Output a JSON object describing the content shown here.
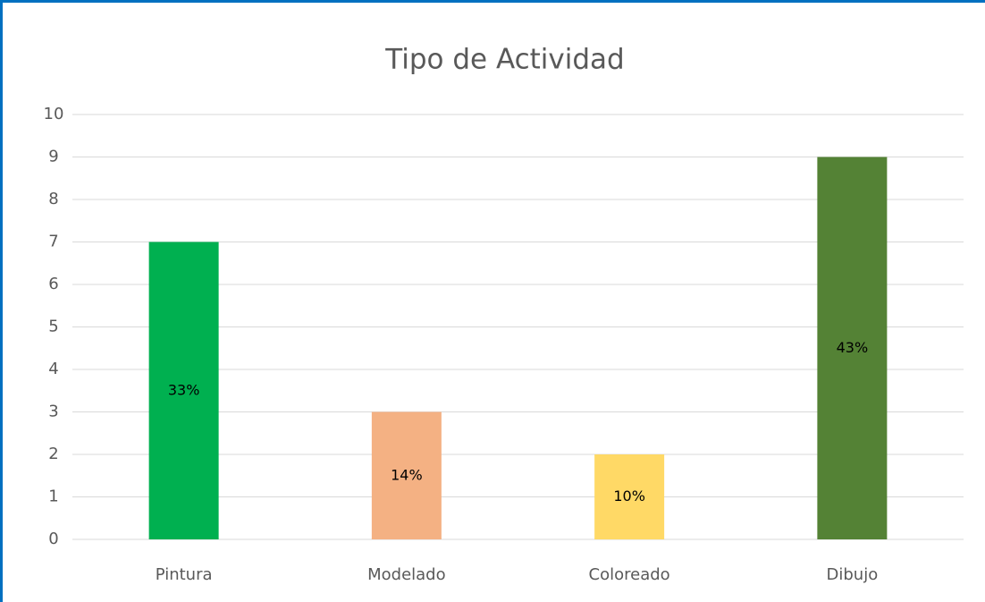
{
  "chart_data": {
    "type": "bar",
    "title": "Tipo de Actividad",
    "categories": [
      "Pintura",
      "Modelado",
      "Coloreado",
      "Dibujo"
    ],
    "values": [
      7,
      3,
      2,
      9
    ],
    "data_labels": [
      "33%",
      "14%",
      "10%",
      "43%"
    ],
    "colors": [
      "#00b050",
      "#f4b183",
      "#ffd966",
      "#548235"
    ],
    "ylim": [
      0,
      10
    ],
    "yticks": [
      0,
      1,
      2,
      3,
      4,
      5,
      6,
      7,
      8,
      9,
      10
    ],
    "grid": true
  }
}
